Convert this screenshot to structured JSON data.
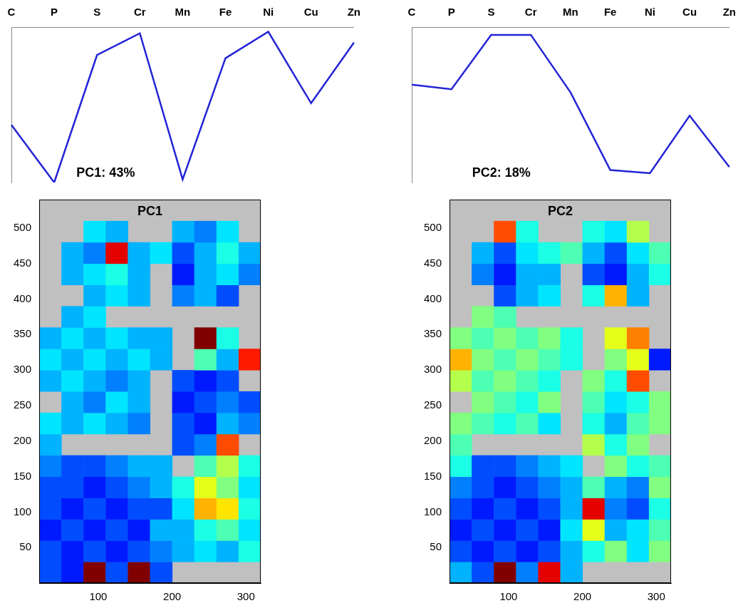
{
  "chart_data": [
    {
      "type": "line",
      "annotation": "PC1: 43%",
      "categories": [
        "C",
        "P",
        "S",
        "Cr",
        "Mn",
        "Fe",
        "Ni",
        "Cu",
        "Zn"
      ],
      "values": [
        0.37,
        0.0,
        0.82,
        0.96,
        0.02,
        0.8,
        0.97,
        0.51,
        0.9
      ],
      "color": "#2323d6",
      "ylim": [
        0,
        1
      ],
      "tick_labels": "x",
      "grid": false
    },
    {
      "type": "line",
      "annotation": "PC2: 18%",
      "categories": [
        "C",
        "P",
        "S",
        "Cr",
        "Mn",
        "Fe",
        "Ni",
        "Cu",
        "Zn"
      ],
      "values": [
        0.63,
        0.6,
        0.95,
        0.95,
        0.58,
        0.08,
        0.06,
        0.43,
        0.1
      ],
      "color": "#2323d6",
      "ylim": [
        0,
        1
      ],
      "tick_labels": "x",
      "grid": false
    },
    {
      "type": "heatmap",
      "title": "PC1",
      "xlim": [
        20,
        320
      ],
      "ylim": [
        0,
        540
      ],
      "xticks": [
        100,
        200,
        300
      ],
      "yticks": [
        50,
        100,
        150,
        200,
        250,
        300,
        350,
        400,
        450,
        500
      ],
      "color_range": [
        0,
        1
      ],
      "cells": [
        [
          0.2,
          0.15,
          1.0,
          0.2,
          1.0,
          0.2,
          null,
          null,
          null,
          null
        ],
        [
          0.2,
          0.15,
          0.2,
          0.15,
          0.2,
          0.25,
          0.3,
          0.35,
          0.3,
          0.4
        ],
        [
          0.15,
          0.2,
          0.15,
          0.2,
          0.15,
          0.3,
          0.3,
          0.4,
          0.45,
          0.35
        ],
        [
          0.2,
          0.15,
          0.2,
          0.15,
          0.2,
          0.2,
          0.35,
          0.7,
          0.65,
          0.4
        ],
        [
          0.2,
          0.2,
          0.15,
          0.2,
          0.25,
          0.3,
          0.4,
          0.6,
          0.5,
          0.35
        ],
        [
          0.25,
          0.2,
          0.2,
          0.25,
          0.3,
          0.3,
          null,
          0.45,
          0.55,
          0.4
        ],
        [
          0.3,
          null,
          null,
          null,
          null,
          null,
          0.2,
          0.25,
          0.8,
          null
        ],
        [
          0.35,
          0.3,
          0.35,
          0.3,
          0.25,
          null,
          0.2,
          0.15,
          0.3,
          0.25
        ],
        [
          null,
          0.3,
          0.25,
          0.35,
          0.3,
          null,
          0.15,
          0.2,
          0.25,
          0.2
        ],
        [
          0.3,
          0.35,
          0.3,
          0.25,
          0.3,
          null,
          0.2,
          0.15,
          0.2,
          null
        ],
        [
          0.35,
          0.3,
          0.35,
          0.3,
          0.35,
          0.3,
          null,
          0.45,
          0.3,
          0.85
        ],
        [
          0.3,
          0.35,
          0.3,
          0.35,
          0.3,
          0.3,
          null,
          1.0,
          0.4,
          null
        ],
        [
          null,
          0.3,
          0.35,
          null,
          null,
          null,
          null,
          null,
          null,
          null
        ],
        [
          null,
          null,
          0.3,
          0.35,
          0.3,
          null,
          0.25,
          0.3,
          0.2,
          null
        ],
        [
          null,
          0.3,
          0.35,
          0.4,
          0.3,
          null,
          0.15,
          0.3,
          0.35,
          0.25
        ],
        [
          null,
          0.3,
          0.25,
          0.9,
          0.3,
          0.35,
          0.2,
          0.3,
          0.4,
          0.3
        ],
        [
          null,
          null,
          0.35,
          0.3,
          null,
          null,
          0.3,
          0.25,
          0.35,
          null
        ],
        [
          null,
          null,
          null,
          null,
          null,
          null,
          null,
          null,
          null,
          null
        ]
      ]
    },
    {
      "type": "heatmap",
      "title": "PC2",
      "xlim": [
        20,
        320
      ],
      "ylim": [
        0,
        540
      ],
      "xticks": [
        100,
        200,
        300
      ],
      "yticks": [
        50,
        100,
        150,
        200,
        250,
        300,
        350,
        400,
        450,
        500
      ],
      "color_range": [
        0,
        1
      ],
      "cells": [
        [
          0.3,
          0.2,
          1.0,
          0.25,
          0.9,
          0.3,
          null,
          null,
          null,
          null
        ],
        [
          0.2,
          0.15,
          0.2,
          0.15,
          0.2,
          0.3,
          0.4,
          0.5,
          0.35,
          0.5
        ],
        [
          0.15,
          0.2,
          0.15,
          0.2,
          0.15,
          0.35,
          0.6,
          0.3,
          0.35,
          0.45
        ],
        [
          0.2,
          0.15,
          0.2,
          0.15,
          0.2,
          0.3,
          0.9,
          0.25,
          0.2,
          0.4
        ],
        [
          0.25,
          0.2,
          0.15,
          0.2,
          0.25,
          0.3,
          0.45,
          0.3,
          0.25,
          0.5
        ],
        [
          0.4,
          0.2,
          0.2,
          0.25,
          0.3,
          0.35,
          null,
          0.5,
          0.4,
          0.45
        ],
        [
          0.45,
          null,
          null,
          null,
          null,
          null,
          0.55,
          0.4,
          0.5,
          null
        ],
        [
          0.5,
          0.45,
          0.4,
          0.45,
          0.35,
          null,
          0.4,
          0.3,
          0.45,
          0.5
        ],
        [
          null,
          0.5,
          0.45,
          0.4,
          0.5,
          null,
          0.45,
          0.35,
          0.4,
          0.5
        ],
        [
          0.55,
          0.45,
          0.5,
          0.45,
          0.4,
          null,
          0.5,
          0.4,
          0.8,
          null
        ],
        [
          0.7,
          0.5,
          0.45,
          0.5,
          0.45,
          0.4,
          null,
          0.5,
          0.6,
          0.15
        ],
        [
          0.5,
          0.45,
          0.5,
          0.45,
          0.5,
          0.4,
          null,
          0.6,
          0.75,
          null
        ],
        [
          null,
          0.5,
          0.45,
          null,
          null,
          null,
          null,
          null,
          null,
          null
        ],
        [
          null,
          null,
          0.2,
          0.3,
          0.35,
          null,
          0.4,
          0.7,
          0.3,
          null
        ],
        [
          null,
          0.25,
          0.15,
          0.3,
          0.3,
          null,
          0.2,
          0.15,
          0.3,
          0.4
        ],
        [
          null,
          0.3,
          0.2,
          0.35,
          0.4,
          0.45,
          0.3,
          0.2,
          0.35,
          0.45
        ],
        [
          null,
          null,
          0.8,
          0.4,
          null,
          null,
          0.4,
          0.35,
          0.55,
          null
        ],
        [
          null,
          null,
          null,
          null,
          null,
          null,
          null,
          null,
          null,
          null
        ]
      ]
    }
  ]
}
